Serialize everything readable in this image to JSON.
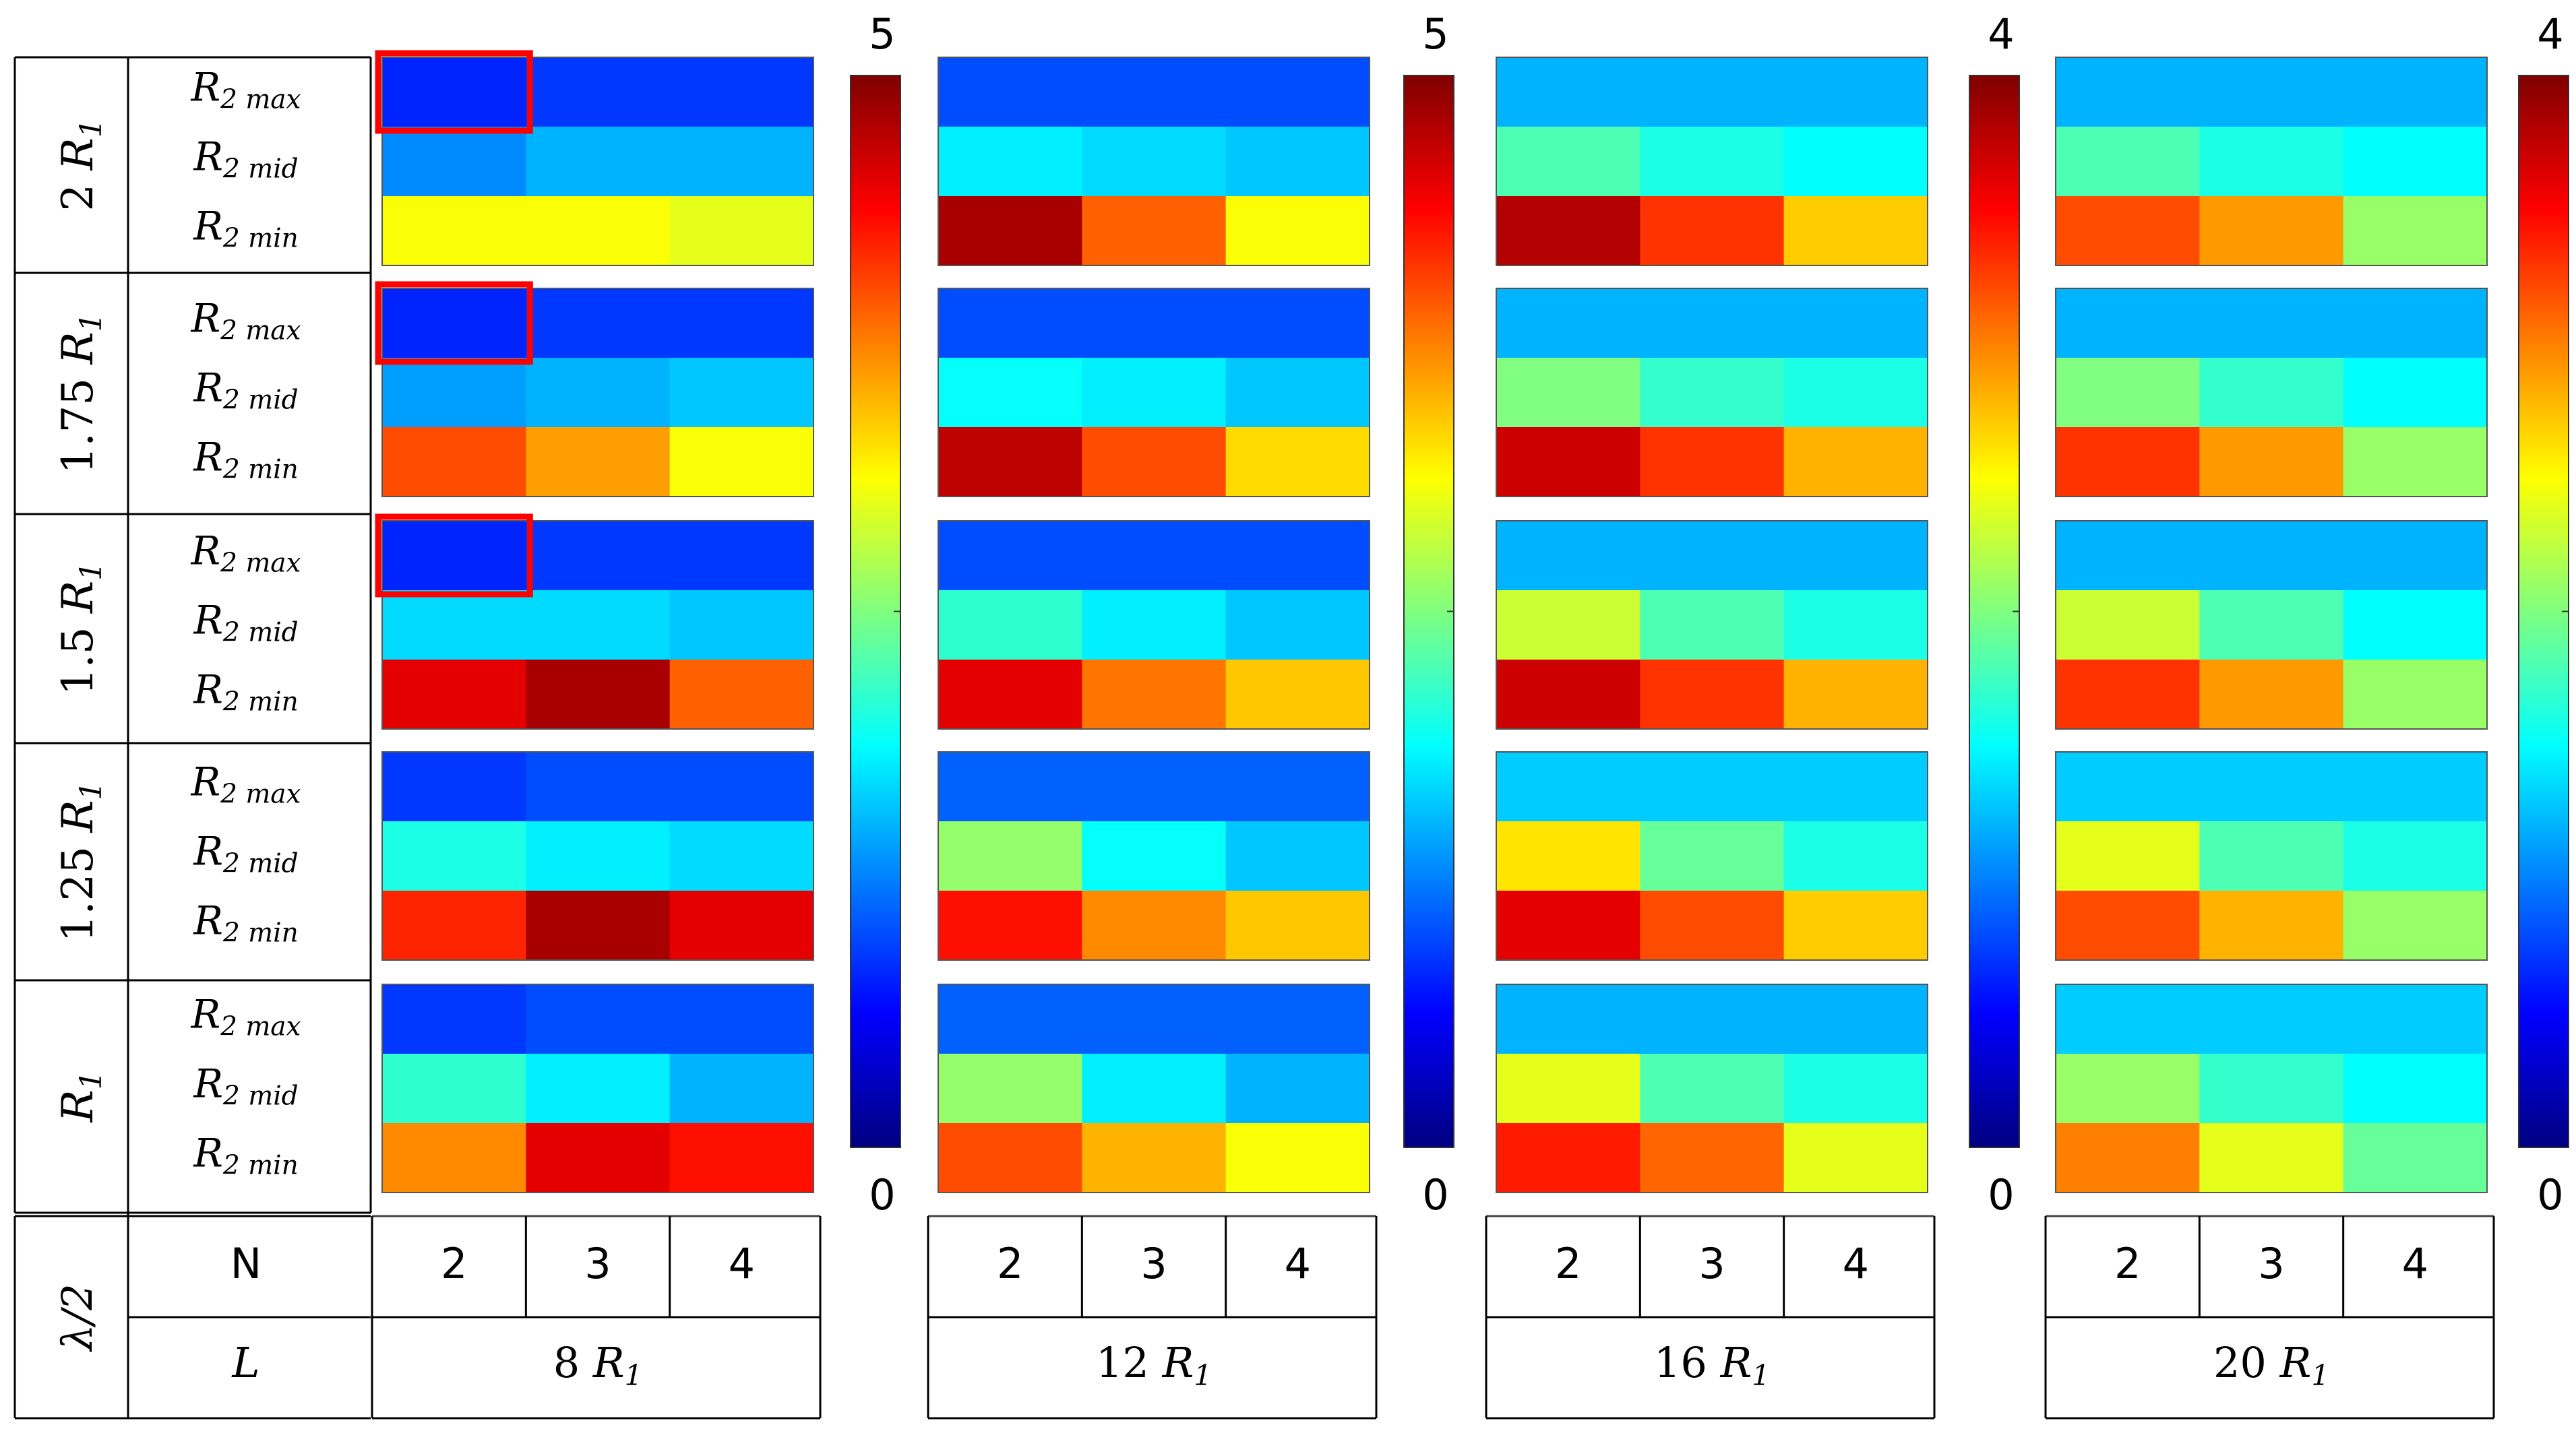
{
  "chart_data": {
    "type": "heatmap",
    "colormap": "jet",
    "row_group_labels": [
      {
        "label": "2 R",
        "sub": "1"
      },
      {
        "label": "1.75 R",
        "sub": "1"
      },
      {
        "label": "1.5 R",
        "sub": "1"
      },
      {
        "label": "1.25 R",
        "sub": "1"
      },
      {
        "label": "R",
        "sub": "1"
      }
    ],
    "row_labels": [
      {
        "label": "R",
        "sub": "2 max"
      },
      {
        "label": "R",
        "sub": "2 mid"
      },
      {
        "label": "R",
        "sub": "2 min"
      }
    ],
    "footer": {
      "lambda_label": "λ/2",
      "n_label": "N",
      "l_label": "L"
    },
    "n_values": [
      "2",
      "3",
      "4"
    ],
    "panels": [
      {
        "L": {
          "label": "8 R",
          "sub": "1"
        },
        "colorbar": {
          "min": 0,
          "max": 5,
          "min_label": "0",
          "max_label": "5"
        },
        "values": [
          [
            [
              0.8,
              0.9,
              0.9
            ],
            [
              1.3,
              1.5,
              1.5
            ],
            [
              3.1,
              3.1,
              3.0
            ]
          ],
          [
            [
              0.8,
              0.9,
              0.9
            ],
            [
              1.4,
              1.5,
              1.6
            ],
            [
              4.0,
              3.6,
              3.1
            ]
          ],
          [
            [
              0.8,
              0.9,
              0.9
            ],
            [
              1.7,
              1.7,
              1.6
            ],
            [
              4.5,
              4.8,
              3.9
            ]
          ],
          [
            [
              0.9,
              1.0,
              1.0
            ],
            [
              2.0,
              1.8,
              1.7
            ],
            [
              4.2,
              4.8,
              4.5
            ]
          ],
          [
            [
              0.9,
              1.0,
              1.0
            ],
            [
              2.1,
              1.8,
              1.5
            ],
            [
              3.7,
              4.5,
              4.3
            ]
          ]
        ],
        "highlighted_cells": [
          [
            0,
            0,
            0
          ],
          [
            1,
            0,
            0
          ],
          [
            2,
            0,
            0
          ]
        ]
      },
      {
        "L": {
          "label": "12 R",
          "sub": "1"
        },
        "colorbar": {
          "min": 0,
          "max": 5,
          "min_label": "0",
          "max_label": "5"
        },
        "values": [
          [
            [
              1.0,
              1.0,
              1.0
            ],
            [
              1.8,
              1.7,
              1.6
            ],
            [
              4.8,
              3.9,
              3.1
            ]
          ],
          [
            [
              1.0,
              1.0,
              1.0
            ],
            [
              1.9,
              1.8,
              1.6
            ],
            [
              4.7,
              4.0,
              3.3
            ]
          ],
          [
            [
              1.0,
              1.0,
              1.0
            ],
            [
              2.1,
              1.8,
              1.6
            ],
            [
              4.5,
              3.8,
              3.4
            ]
          ],
          [
            [
              1.1,
              1.1,
              1.1
            ],
            [
              2.6,
              1.9,
              1.6
            ],
            [
              4.3,
              3.7,
              3.4
            ]
          ],
          [
            [
              1.1,
              1.1,
              1.1
            ],
            [
              2.6,
              1.8,
              1.5
            ],
            [
              4.0,
              3.5,
              3.1
            ]
          ]
        ],
        "highlighted_cells": []
      },
      {
        "L": {
          "label": "16 R",
          "sub": "1"
        },
        "colorbar": {
          "min": 0,
          "max": 4,
          "min_label": "0",
          "max_label": "4"
        },
        "values": [
          [
            [
              1.2,
              1.2,
              1.2
            ],
            [
              1.8,
              1.6,
              1.5
            ],
            [
              3.8,
              3.3,
              2.7
            ]
          ],
          [
            [
              1.2,
              1.2,
              1.2
            ],
            [
              2.0,
              1.7,
              1.6
            ],
            [
              3.7,
              3.3,
              2.8
            ]
          ],
          [
            [
              1.2,
              1.2,
              1.2
            ],
            [
              2.3,
              1.8,
              1.6
            ],
            [
              3.7,
              3.3,
              2.8
            ]
          ],
          [
            [
              1.3,
              1.3,
              1.3
            ],
            [
              2.6,
              1.9,
              1.6
            ],
            [
              3.6,
              3.2,
              2.7
            ]
          ],
          [
            [
              1.2,
              1.2,
              1.2
            ],
            [
              2.4,
              1.8,
              1.6
            ],
            [
              3.4,
              3.1,
              2.4
            ]
          ]
        ],
        "highlighted_cells": []
      },
      {
        "L": {
          "label": "20 R",
          "sub": "1"
        },
        "colorbar": {
          "min": 0,
          "max": 4,
          "min_label": "0",
          "max_label": "4"
        },
        "values": [
          [
            [
              1.2,
              1.2,
              1.2
            ],
            [
              1.8,
              1.6,
              1.5
            ],
            [
              3.2,
              2.9,
              2.1
            ]
          ],
          [
            [
              1.2,
              1.2,
              1.2
            ],
            [
              2.0,
              1.7,
              1.5
            ],
            [
              3.3,
              2.9,
              2.1
            ]
          ],
          [
            [
              1.2,
              1.2,
              1.2
            ],
            [
              2.3,
              1.8,
              1.5
            ],
            [
              3.3,
              2.9,
              2.1
            ]
          ],
          [
            [
              1.3,
              1.3,
              1.3
            ],
            [
              2.4,
              1.8,
              1.6
            ],
            [
              3.2,
              2.8,
              2.1
            ]
          ],
          [
            [
              1.3,
              1.3,
              1.3
            ],
            [
              2.1,
              1.7,
              1.5
            ],
            [
              3.0,
              2.4,
              1.9
            ]
          ]
        ],
        "highlighted_cells": []
      }
    ],
    "grid": false
  }
}
